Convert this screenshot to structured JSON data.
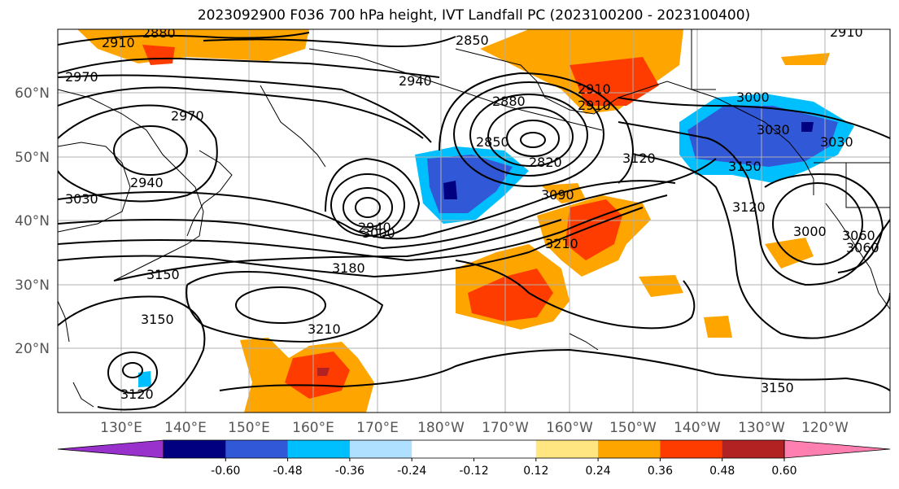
{
  "title": "2023092900 F036 700 hPa height, IVT Landfall PC (2023100200 - 2023100400)",
  "latitude_labels": [
    "60°N",
    "50°N",
    "40°N",
    "30°N",
    "20°N"
  ],
  "longitude_labels": [
    "130°E",
    "140°E",
    "150°E",
    "160°E",
    "170°E",
    "180°W",
    "170°W",
    "160°W",
    "150°W",
    "140°W",
    "130°W",
    "120°W"
  ],
  "contour_labels": [
    "2850",
    "2880",
    "2910",
    "2940",
    "2970",
    "2910",
    "2940",
    "2880",
    "2850",
    "2910",
    "2820",
    "2910",
    "2940",
    "2970",
    "3000",
    "3030",
    "3060",
    "3090",
    "3120",
    "3150",
    "3180",
    "3210",
    "3030",
    "3000",
    "3030",
    "3060",
    "3000",
    "3210",
    "3150",
    "3120",
    "3150",
    "3120",
    "3150"
  ],
  "colorbar": {
    "colors": [
      "#9932cc",
      "#000080",
      "#3158d6",
      "#00bfff",
      "#b0e0ff",
      "#ffffff",
      "#ffffff",
      "#ffe680",
      "#ffa500",
      "#ff3c00",
      "#b22222",
      "#ff80b0"
    ],
    "tick_labels": [
      "-0.60",
      "-0.48",
      "-0.36",
      "-0.24",
      "-0.12",
      "0.12",
      "0.24",
      "0.36",
      "0.48",
      "0.60"
    ]
  },
  "palette": {
    "positive_light": "#ffe680",
    "positive": "#ffa500",
    "positive_strong": "#ff3c00",
    "positive_max": "#b22222",
    "negative_light": "#00bfff",
    "negative": "#3158d6",
    "negative_strong": "#000080"
  }
}
